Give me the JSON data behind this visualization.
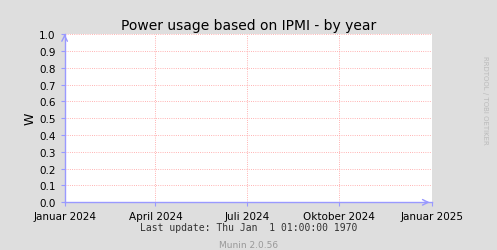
{
  "title": "Power usage based on IPMI - by year",
  "ylabel": "W",
  "ylim": [
    0.0,
    1.0
  ],
  "yticks": [
    0.0,
    0.1,
    0.2,
    0.3,
    0.4,
    0.5,
    0.6,
    0.7,
    0.8,
    0.9,
    1.0
  ],
  "xtick_labels": [
    "Januar 2024",
    "April 2024",
    "Juli 2024",
    "Oktober 2024",
    "Januar 2025"
  ],
  "xtick_positions": [
    0.0,
    0.247,
    0.497,
    0.745,
    1.0
  ],
  "footer_text": "Last update: Thu Jan  1 01:00:00 1970",
  "footer_right": "RRDTOOL / TOBI OETIKER",
  "munin_text": "Munin 2.0.56",
  "bg_color": "#dedede",
  "plot_bg_color": "#ffffff",
  "grid_color": "#ff9999",
  "axis_color": "#9999ff",
  "title_color": "#000000",
  "ylabel_color": "#000000",
  "footer_color": "#333333",
  "munin_color": "#999999",
  "right_label_color": "#bbbbbb",
  "grid_linestyle": ":",
  "grid_linewidth": 0.6,
  "title_fontsize": 10,
  "tick_fontsize": 7.5,
  "footer_fontsize": 7,
  "munin_fontsize": 6.5
}
